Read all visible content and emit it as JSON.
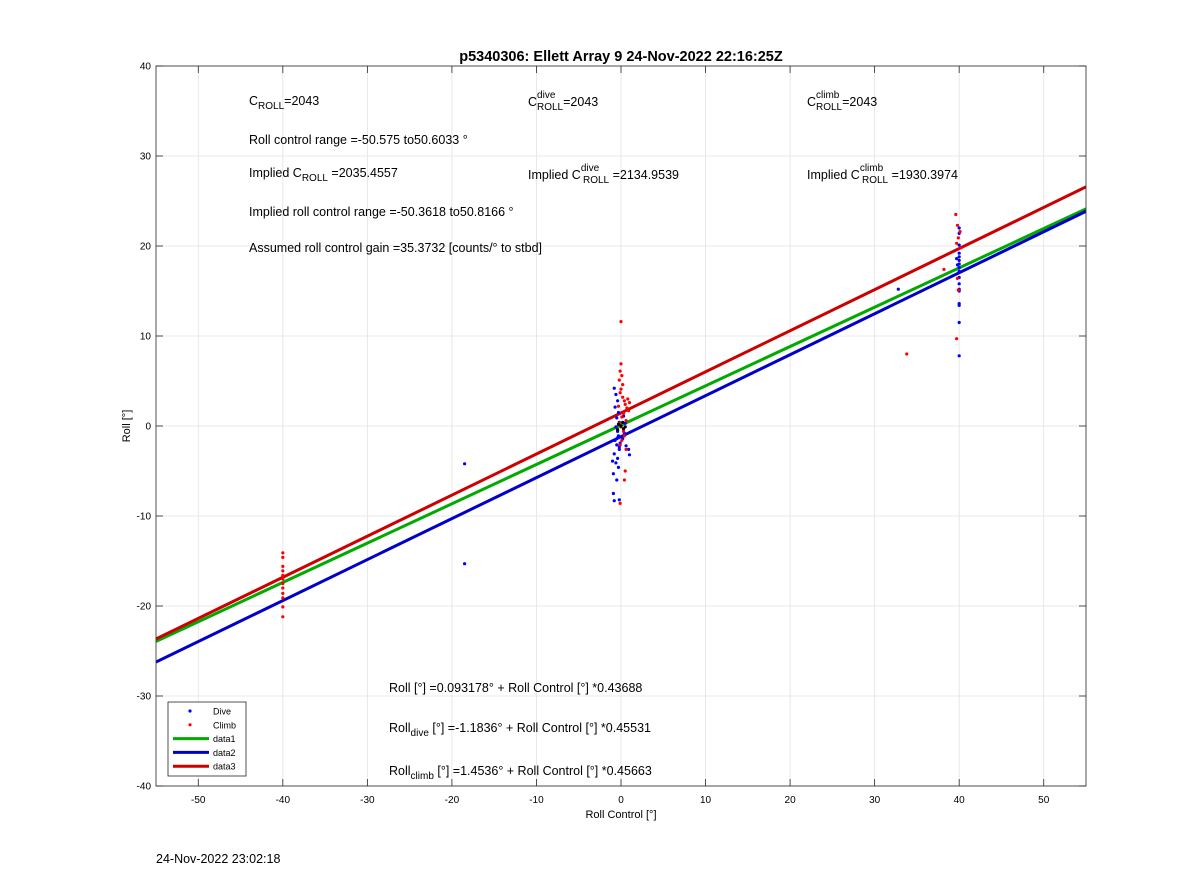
{
  "footer_timestamp": "24-Nov-2022 23:02:18",
  "annotations": {
    "c_roll": {
      "base": "C",
      "sub": "ROLL",
      "sup": "",
      "value": "=2043"
    },
    "c_roll_dive": {
      "base": "C",
      "sub": "ROLL",
      "sup": "dive",
      "value": "=2043"
    },
    "c_roll_climb": {
      "base": "C",
      "sub": "ROLL",
      "sup": "climb",
      "value": "=2043"
    },
    "roll_range": "Roll control range =-50.575 to50.6033 °",
    "implied_c_roll": {
      "prefix": "Implied ",
      "base": "C",
      "sub": "ROLL",
      "sup": "",
      "value": " =2035.4557"
    },
    "implied_c_roll_dive": {
      "prefix": "Implied ",
      "base": "C",
      "sub": "ROLL",
      "sup": "dive",
      "value": " =2134.9539"
    },
    "implied_c_roll_climb": {
      "prefix": "Implied ",
      "base": "C",
      "sub": "ROLL",
      "sup": "climb",
      "value": " =1930.3974"
    },
    "implied_range": "Implied roll control range =-50.3618 to50.8166 °",
    "gain": "Assumed roll control gain =35.3732 [counts/° to stbd]",
    "fit_all": {
      "base": "Roll",
      "sub": "",
      "rest": " [°] =0.093178° + Roll Control [°] *0.43688"
    },
    "fit_dive": {
      "base": "Roll",
      "sub": "dive",
      "rest": " [°] =-1.1836° + Roll Control [°] *0.45531"
    },
    "fit_climb": {
      "base": "Roll",
      "sub": "climb",
      "rest": " [°] =1.4536° + Roll Control [°] *0.45663"
    }
  },
  "chart_data": {
    "type": "scatter",
    "title": "p5340306: Ellett Array 9 24-Nov-2022 22:16:25Z",
    "xlabel": "Roll Control [°]",
    "ylabel": "Roll [°]",
    "xlim": [
      -55,
      55
    ],
    "ylim": [
      -40,
      40
    ],
    "xticks": [
      -50,
      -40,
      -30,
      -20,
      -10,
      0,
      10,
      20,
      30,
      40,
      50
    ],
    "yticks": [
      -40,
      -30,
      -20,
      -10,
      0,
      10,
      20,
      30,
      40
    ],
    "grid": true,
    "legend_position": "bottom-left",
    "series": [
      {
        "name": "Dive",
        "kind": "points",
        "color": "#0000ff",
        "points": [
          [
            -18.5,
            -4.2
          ],
          [
            -18.5,
            -15.3
          ],
          [
            32.8,
            15.2
          ],
          [
            40,
            22.0
          ],
          [
            40,
            21.4
          ],
          [
            40,
            20.1
          ],
          [
            40,
            19.2
          ],
          [
            40,
            18.8
          ],
          [
            40,
            18.4
          ],
          [
            40,
            18.0
          ],
          [
            40,
            17.6
          ],
          [
            40,
            17.2
          ],
          [
            40,
            16.5
          ],
          [
            40,
            15.8
          ],
          [
            40,
            15.2
          ],
          [
            40,
            15.0
          ],
          [
            40,
            13.6
          ],
          [
            40,
            13.4
          ],
          [
            40,
            11.5
          ],
          [
            40,
            7.8
          ],
          [
            39.7,
            18.6
          ],
          [
            39.8,
            17.9
          ],
          [
            -0.8,
            4.2
          ],
          [
            -0.6,
            3.5
          ],
          [
            -0.4,
            2.8
          ],
          [
            -0.7,
            2.1
          ],
          [
            -0.3,
            1.5
          ],
          [
            -0.5,
            0.9
          ],
          [
            -0.2,
            0.4
          ],
          [
            -0.6,
            -0.1
          ],
          [
            -0.4,
            -0.6
          ],
          [
            -0.3,
            -1.1
          ],
          [
            -0.7,
            -1.6
          ],
          [
            -0.5,
            -2.1
          ],
          [
            -0.2,
            -2.6
          ],
          [
            -0.8,
            -3.1
          ],
          [
            -0.4,
            -3.6
          ],
          [
            -0.6,
            -4.1
          ],
          [
            -0.3,
            -4.6
          ],
          [
            -0.9,
            -5.3
          ],
          [
            -0.5,
            -6.0
          ],
          [
            -0.9,
            -7.5
          ],
          [
            -0.8,
            -8.3
          ],
          [
            -0.2,
            -8.2
          ],
          [
            0.2,
            -1.4
          ],
          [
            0.4,
            -0.8
          ],
          [
            0.6,
            -2.2
          ],
          [
            0.9,
            -2.6
          ],
          [
            1.0,
            -3.2
          ],
          [
            0.5,
            0.3
          ],
          [
            0.3,
            1.1
          ],
          [
            -1.0,
            -3.9
          ],
          [
            -0.1,
            -1.9
          ],
          [
            -0.2,
            -2.3
          ],
          [
            -0.4,
            -1.3
          ]
        ]
      },
      {
        "name": "Climb",
        "kind": "points",
        "color": "#ff0000",
        "points": [
          [
            -40,
            -14.1
          ],
          [
            -40,
            -14.6
          ],
          [
            -40,
            -15.6
          ],
          [
            -40,
            -16.1
          ],
          [
            -40,
            -16.6
          ],
          [
            -40,
            -17.0
          ],
          [
            -40,
            -17.5
          ],
          [
            -40,
            -18.0
          ],
          [
            -40,
            -18.6
          ],
          [
            -40,
            -19.1
          ],
          [
            -40,
            -20.1
          ],
          [
            -40,
            -21.2
          ],
          [
            33.8,
            8.0
          ],
          [
            38.2,
            17.4
          ],
          [
            39.6,
            23.5
          ],
          [
            39.8,
            22.3
          ],
          [
            40.1,
            21.6
          ],
          [
            39.9,
            20.9
          ],
          [
            39.7,
            20.3
          ],
          [
            40.2,
            19.8
          ],
          [
            39.8,
            16.4
          ],
          [
            39.9,
            15.1
          ],
          [
            39.7,
            9.7
          ],
          [
            0,
            11.6
          ],
          [
            0,
            6.9
          ],
          [
            -0.1,
            6.1
          ],
          [
            0.1,
            5.6
          ],
          [
            -0.2,
            5.1
          ],
          [
            0.2,
            4.6
          ],
          [
            0,
            4.1
          ],
          [
            -0.1,
            3.7
          ],
          [
            0.2,
            3.2
          ],
          [
            0.4,
            2.8
          ],
          [
            0.5,
            2.4
          ],
          [
            0.7,
            2.0
          ],
          [
            0.9,
            1.7
          ],
          [
            -0.3,
            2.2
          ],
          [
            0.3,
            1.4
          ],
          [
            0.1,
            1.0
          ],
          [
            0.6,
            0.6
          ],
          [
            -0.2,
            0.3
          ],
          [
            0,
            -0.1
          ],
          [
            0.3,
            -0.6
          ],
          [
            0.4,
            -1.1
          ],
          [
            0.1,
            -1.6
          ],
          [
            -0.1,
            -2.1
          ],
          [
            0.6,
            -2.6
          ],
          [
            0.5,
            -5.0
          ],
          [
            0.4,
            -6.0
          ],
          [
            -0.1,
            -8.6
          ],
          [
            0.8,
            3.0
          ],
          [
            1.0,
            2.6
          ]
        ]
      },
      {
        "name": "Neutral",
        "kind": "points",
        "color": "#000000",
        "in_legend": false,
        "points": [
          [
            0,
            0.0
          ],
          [
            0.3,
            -0.3
          ],
          [
            -0.3,
            0.2
          ],
          [
            0.5,
            -0.1
          ],
          [
            0.2,
            0.4
          ],
          [
            -0.4,
            -0.4
          ]
        ]
      },
      {
        "name": "data1",
        "kind": "line",
        "color": "#00aa00",
        "intercept": 0.093178,
        "slope": 0.43688
      },
      {
        "name": "data2",
        "kind": "line",
        "color": "#0000c8",
        "intercept": -1.1836,
        "slope": 0.45531
      },
      {
        "name": "data3",
        "kind": "line",
        "color": "#cc0000",
        "intercept": 1.4536,
        "slope": 0.45663
      }
    ]
  }
}
